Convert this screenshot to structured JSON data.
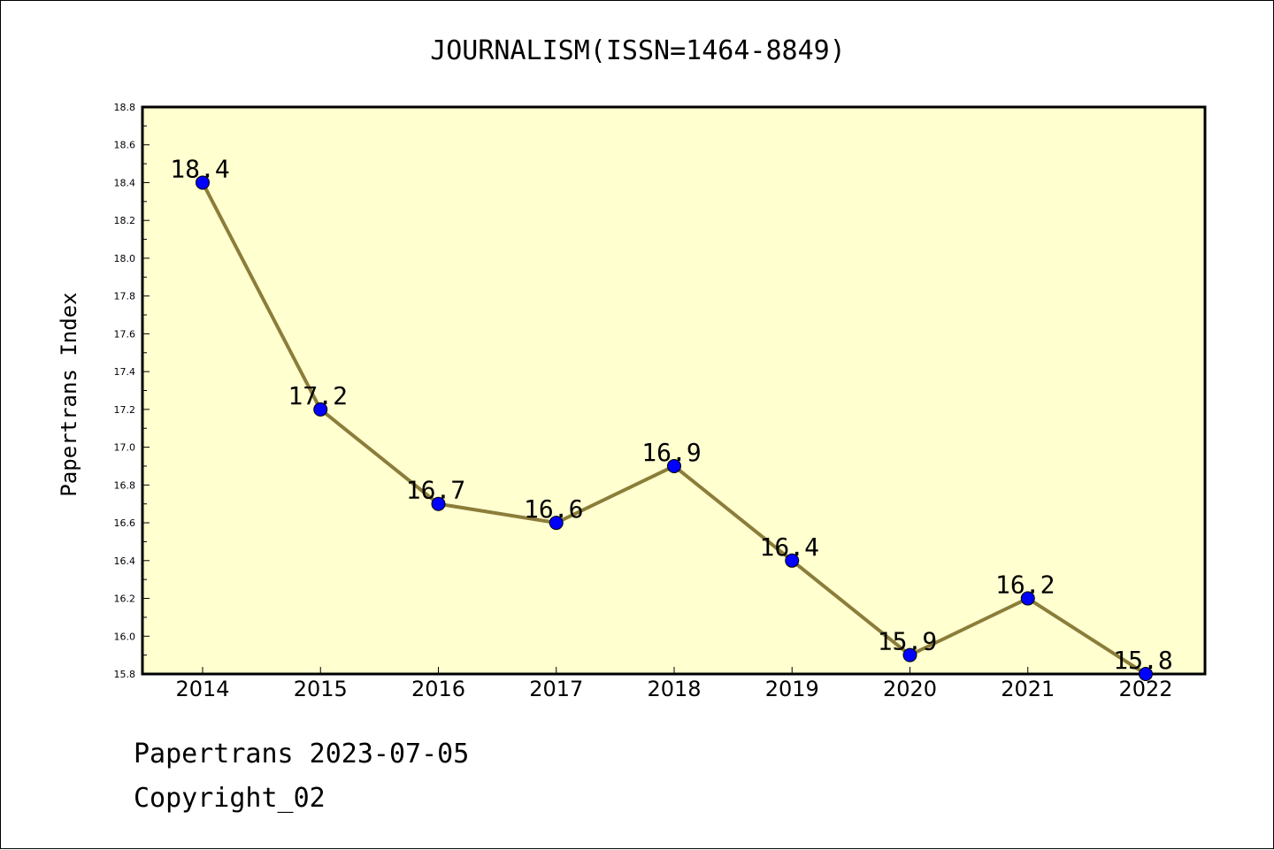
{
  "chart_data": {
    "type": "line",
    "title": "JOURNALISM(ISSN=1464-8849)",
    "xlabel": "",
    "ylabel": "Papertrans Index",
    "categories": [
      "2014",
      "2015",
      "2016",
      "2017",
      "2018",
      "2019",
      "2020",
      "2021",
      "2022"
    ],
    "series": [
      {
        "values": [
          18.4,
          17.2,
          16.7,
          16.6,
          16.9,
          16.4,
          15.9,
          16.2,
          15.8
        ]
      }
    ],
    "data_labels": [
      "18.4",
      "17.2",
      "16.7",
      "16.6",
      "16.9",
      "16.4",
      "15.9",
      "16.2",
      "15.8"
    ],
    "ylim": [
      15.8,
      18.8
    ],
    "yticks": [
      "15.8",
      "16.0",
      "16.2",
      "16.4",
      "16.6",
      "16.8",
      "17.0",
      "17.2",
      "17.4",
      "17.6",
      "17.8",
      "18.0",
      "18.2",
      "18.4",
      "18.6",
      "18.8"
    ],
    "grid": false,
    "legend": "none",
    "colors": {
      "plot_background": "#ffffd0",
      "line": "#8b7d3a",
      "marker": "#0000ff",
      "marker_edge": "#000000"
    }
  },
  "footer": {
    "line1": "Papertrans 2023-07-05",
    "line2": "Copyright_02"
  }
}
